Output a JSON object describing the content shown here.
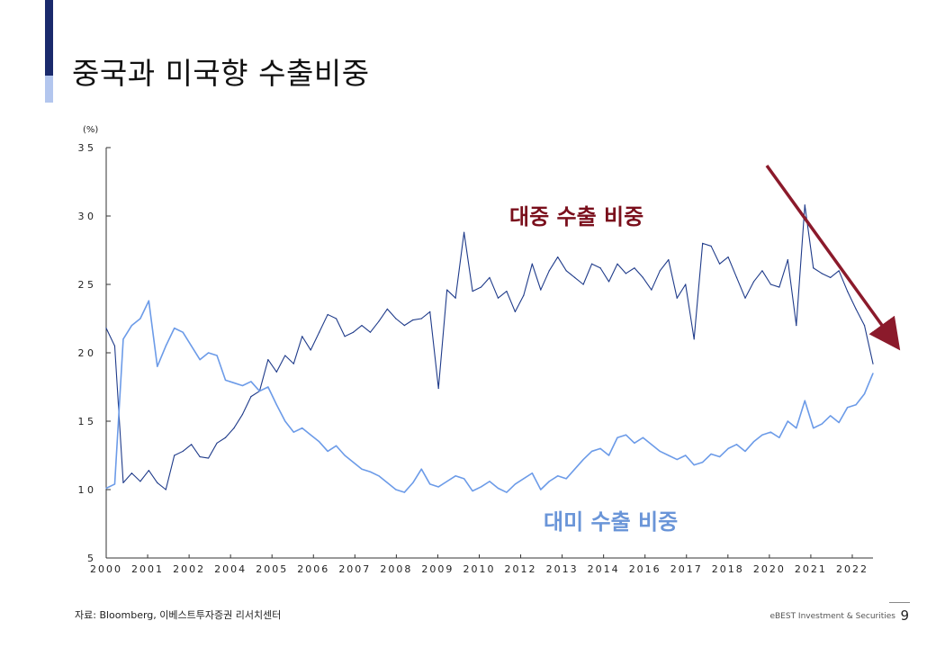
{
  "page": {
    "title": "중국과 미국향 수출비중",
    "source": "자료: Bloomberg, 이베스트투자증권 리서치센터",
    "company": "eBEST Investment & Securities",
    "page_number": "9"
  },
  "colors": {
    "china_line": "#1f3b8a",
    "us_line": "#6c9be8",
    "china_label": "#7a0f1c",
    "us_label": "#6a95d8",
    "arrow": "#8b1a2b",
    "accent_dark": "#1a2a6c",
    "accent_light": "#b3c6ee"
  },
  "chart_data": {
    "type": "line",
    "title": "",
    "ylabel": "(%)",
    "ylim": [
      5,
      35
    ],
    "yticks": [
      "3 5",
      "3 0",
      "2 5",
      "2 0",
      "1 5",
      "1 0",
      "5"
    ],
    "xlim": [
      2000,
      2022.5
    ],
    "xticks": [
      "2000",
      "2001",
      "2002",
      "2004",
      "2005",
      "2006",
      "2007",
      "2008",
      "2009",
      "2010",
      "2012",
      "2013",
      "2014",
      "2016",
      "2017",
      "2018",
      "2020",
      "2021",
      "2022"
    ],
    "annotations": [
      {
        "name": "china-series-label",
        "text": "대중 수출 비중"
      },
      {
        "name": "us-series-label",
        "text": "대미 수출 비중"
      }
    ],
    "series": [
      {
        "name": "대중 수출 비중",
        "color": "#1f3b8a",
        "x": [
          2000.0,
          2000.25,
          2000.5,
          2000.75,
          2001.0,
          2001.25,
          2001.5,
          2001.75,
          2002.0,
          2002.25,
          2002.5,
          2002.75,
          2003.0,
          2003.25,
          2003.5,
          2003.75,
          2004.0,
          2004.25,
          2004.5,
          2004.75,
          2005.0,
          2005.25,
          2005.5,
          2005.75,
          2006.0,
          2006.25,
          2006.5,
          2006.75,
          2007.0,
          2007.25,
          2007.5,
          2007.75,
          2008.0,
          2008.25,
          2008.5,
          2008.75,
          2009.0,
          2009.25,
          2009.5,
          2009.75,
          2010.0,
          2010.25,
          2010.5,
          2010.75,
          2011.0,
          2011.25,
          2011.5,
          2011.75,
          2012.0,
          2012.25,
          2012.5,
          2012.75,
          2013.0,
          2013.25,
          2013.5,
          2013.75,
          2014.0,
          2014.25,
          2014.5,
          2014.75,
          2015.0,
          2015.25,
          2015.5,
          2015.75,
          2016.0,
          2016.25,
          2016.5,
          2016.75,
          2017.0,
          2017.25,
          2017.5,
          2017.75,
          2018.0,
          2018.25,
          2018.5,
          2018.75,
          2019.0,
          2019.25,
          2019.5,
          2019.75,
          2020.0,
          2020.25,
          2020.5,
          2020.75,
          2021.0,
          2021.25,
          2021.5,
          2021.75,
          2022.0,
          2022.25,
          2022.5
        ],
        "values": [
          21.8,
          20.5,
          10.5,
          11.2,
          10.6,
          11.4,
          10.5,
          10.0,
          12.5,
          12.8,
          13.3,
          12.4,
          12.3,
          13.4,
          13.8,
          14.5,
          15.5,
          16.8,
          17.2,
          19.5,
          18.6,
          19.8,
          19.2,
          21.2,
          20.2,
          21.5,
          22.8,
          22.5,
          21.2,
          21.5,
          22.0,
          21.5,
          22.3,
          23.2,
          22.5,
          22.0,
          22.4,
          22.5,
          23.0,
          17.4,
          24.6,
          24.0,
          28.8,
          24.5,
          24.8,
          25.5,
          24.0,
          24.5,
          23.0,
          24.2,
          26.5,
          24.6,
          26.0,
          27.0,
          26.0,
          25.5,
          25.0,
          26.5,
          26.2,
          25.2,
          26.5,
          25.8,
          26.2,
          25.5,
          24.6,
          26.0,
          26.8,
          24.0,
          25.0,
          21.0,
          28.0,
          27.8,
          26.5,
          27.0,
          25.5,
          24.0,
          25.2,
          26.0,
          25.0,
          24.8,
          26.8,
          22.0,
          30.8,
          26.2,
          25.8,
          25.5,
          26.0,
          24.5,
          23.2,
          22.0,
          19.2
        ]
      },
      {
        "name": "대미 수출 비중",
        "color": "#6c9be8",
        "x": [
          2000.0,
          2000.25,
          2000.5,
          2000.75,
          2001.0,
          2001.25,
          2001.5,
          2001.75,
          2002.0,
          2002.25,
          2002.5,
          2002.75,
          2003.0,
          2003.25,
          2003.5,
          2003.75,
          2004.0,
          2004.25,
          2004.5,
          2004.75,
          2005.0,
          2005.25,
          2005.5,
          2005.75,
          2006.0,
          2006.25,
          2006.5,
          2006.75,
          2007.0,
          2007.25,
          2007.5,
          2007.75,
          2008.0,
          2008.25,
          2008.5,
          2008.75,
          2009.0,
          2009.25,
          2009.5,
          2009.75,
          2010.0,
          2010.25,
          2010.5,
          2010.75,
          2011.0,
          2011.25,
          2011.5,
          2011.75,
          2012.0,
          2012.25,
          2012.5,
          2012.75,
          2013.0,
          2013.25,
          2013.5,
          2013.75,
          2014.0,
          2014.25,
          2014.5,
          2014.75,
          2015.0,
          2015.25,
          2015.5,
          2015.75,
          2016.0,
          2016.25,
          2016.5,
          2016.75,
          2017.0,
          2017.25,
          2017.5,
          2017.75,
          2018.0,
          2018.25,
          2018.5,
          2018.75,
          2019.0,
          2019.25,
          2019.5,
          2019.75,
          2020.0,
          2020.25,
          2020.5,
          2020.75,
          2021.0,
          2021.25,
          2021.5,
          2021.75,
          2022.0,
          2022.25,
          2022.5
        ],
        "values": [
          10.1,
          10.4,
          21.0,
          22.0,
          22.5,
          23.8,
          19.0,
          20.5,
          21.8,
          21.5,
          20.5,
          19.5,
          20.0,
          19.8,
          18.0,
          17.8,
          17.6,
          17.9,
          17.2,
          17.5,
          16.2,
          15.0,
          14.2,
          14.5,
          14.0,
          13.5,
          12.8,
          13.2,
          12.5,
          12.0,
          11.5,
          11.3,
          11.0,
          10.5,
          10.0,
          9.8,
          10.5,
          11.5,
          10.4,
          10.2,
          10.6,
          11.0,
          10.8,
          9.9,
          10.2,
          10.6,
          10.1,
          9.8,
          10.4,
          10.8,
          11.2,
          10.0,
          10.6,
          11.0,
          10.8,
          11.5,
          12.2,
          12.8,
          13.0,
          12.5,
          13.8,
          14.0,
          13.4,
          13.8,
          13.3,
          12.8,
          12.5,
          12.2,
          12.5,
          11.8,
          12.0,
          12.6,
          12.4,
          13.0,
          13.3,
          12.8,
          13.5,
          14.0,
          14.2,
          13.8,
          15.0,
          14.5,
          16.5,
          14.5,
          14.8,
          15.4,
          14.9,
          16.0,
          16.2,
          17.0,
          18.5
        ]
      }
    ]
  }
}
